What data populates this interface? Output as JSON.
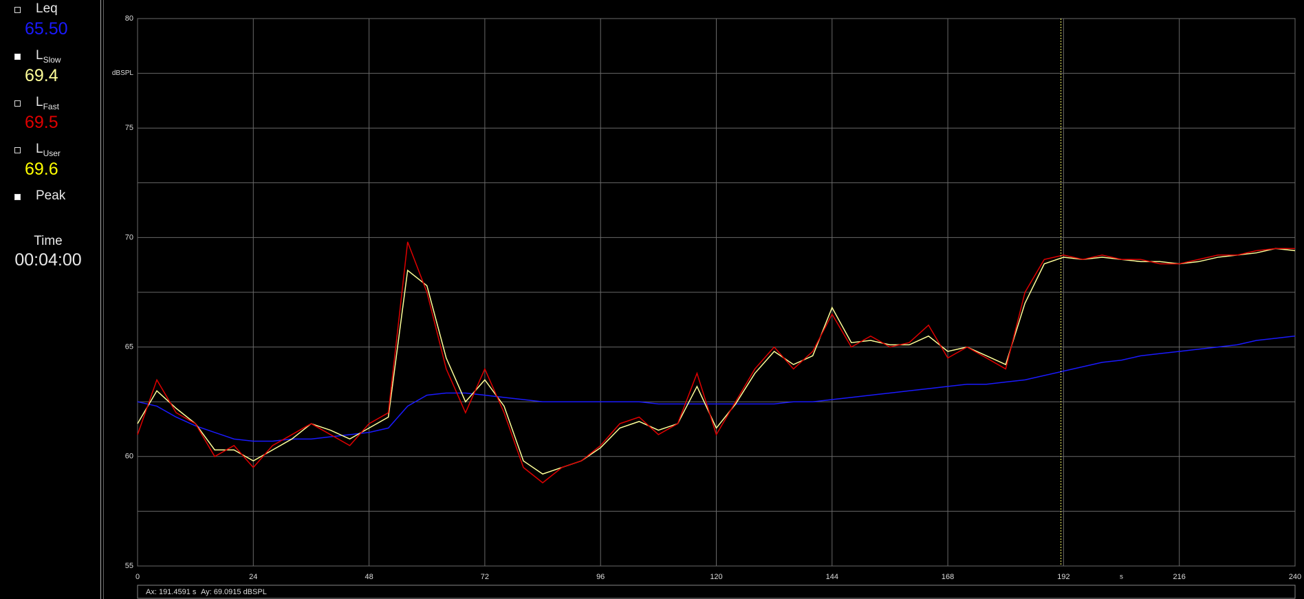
{
  "chart_data": {
    "type": "line",
    "xlabel": "s",
    "ylabel": "dBSPL",
    "x": [
      0,
      4,
      8,
      12,
      16,
      20,
      24,
      28,
      32,
      36,
      40,
      44,
      48,
      52,
      56,
      60,
      64,
      68,
      72,
      76,
      80,
      84,
      88,
      92,
      96,
      100,
      104,
      108,
      112,
      116,
      120,
      124,
      128,
      132,
      136,
      140,
      144,
      148,
      152,
      156,
      160,
      164,
      168,
      172,
      176,
      180,
      184,
      188,
      192,
      196,
      200,
      204,
      208,
      212,
      216,
      220,
      224,
      228,
      232,
      236,
      240
    ],
    "xlim": [
      0,
      240
    ],
    "xticks": [
      0,
      24,
      48,
      72,
      96,
      120,
      144,
      168,
      192,
      216,
      240
    ],
    "ylim": [
      55,
      80
    ],
    "yticks": [
      55,
      60,
      65,
      70,
      75,
      80
    ],
    "minor_yticks": [
      57.5,
      62.5,
      67.5,
      72.5,
      77.5
    ],
    "grid": true,
    "series": [
      {
        "name": "Leq",
        "color": "#1a1aff",
        "checked": false,
        "reading": 65.5,
        "reading_label": "65.50",
        "values": [
          62.5,
          62.3,
          61.8,
          61.4,
          61.1,
          60.8,
          60.7,
          60.7,
          60.8,
          60.8,
          60.9,
          61,
          61.1,
          61.3,
          62.3,
          62.8,
          62.9,
          62.9,
          62.8,
          62.7,
          62.6,
          62.5,
          62.5,
          62.5,
          62.5,
          62.5,
          62.5,
          62.4,
          62.4,
          62.4,
          62.4,
          62.4,
          62.4,
          62.4,
          62.5,
          62.5,
          62.6,
          62.7,
          62.8,
          62.9,
          63,
          63.1,
          63.2,
          63.3,
          63.3,
          63.4,
          63.5,
          63.7,
          63.9,
          64.1,
          64.3,
          64.4,
          64.6,
          64.7,
          64.8,
          64.9,
          65,
          65.1,
          65.3,
          65.4,
          65.5
        ]
      },
      {
        "name": "L",
        "sub": "Slow",
        "color": "#ffff99",
        "checked": true,
        "reading": 69.4,
        "values": [
          61.5,
          63,
          62.2,
          61.5,
          60.3,
          60.3,
          59.8,
          60.3,
          60.8,
          61.5,
          61.2,
          60.8,
          61.3,
          61.8,
          68.5,
          67.8,
          64.5,
          62.5,
          63.5,
          62.3,
          59.8,
          59.2,
          59.5,
          59.8,
          60.4,
          61.3,
          61.6,
          61.2,
          61.5,
          63.2,
          61.3,
          62.4,
          63.8,
          64.8,
          64.2,
          64.6,
          66.8,
          65.2,
          65.3,
          65.1,
          65.1,
          65.5,
          64.8,
          65,
          64.6,
          64.2,
          67,
          68.8,
          69.1,
          69,
          69.1,
          69,
          68.9,
          68.9,
          68.8,
          68.9,
          69.1,
          69.2,
          69.3,
          69.5,
          69.4
        ]
      },
      {
        "name": "L",
        "sub": "Fast",
        "color": "#e00000",
        "checked": false,
        "reading": 69.5,
        "values": [
          61,
          63.5,
          62,
          61.5,
          60,
          60.5,
          59.5,
          60.5,
          61,
          61.5,
          61,
          60.5,
          61.5,
          62,
          69.8,
          67.5,
          64,
          62,
          64,
          62,
          59.5,
          58.8,
          59.5,
          59.8,
          60.5,
          61.5,
          61.8,
          61,
          61.5,
          63.8,
          61,
          62.5,
          64,
          65,
          64,
          64.8,
          66.5,
          65,
          65.5,
          65,
          65.2,
          66,
          64.5,
          65,
          64.5,
          64,
          67.5,
          69,
          69.2,
          69,
          69.2,
          69,
          69,
          68.8,
          68.8,
          69,
          69.2,
          69.2,
          69.4,
          69.5,
          69.5
        ]
      }
    ],
    "meter_extra": [
      {
        "name": "L",
        "sub": "User",
        "color": "#ffff00",
        "checked": false,
        "reading": 69.6
      },
      {
        "name": "Peak",
        "checked": true
      }
    ],
    "cursor_x": 191.4591,
    "cursor_color": "#ffff66",
    "status_x": "Ax: 191.4591 s",
    "status_y": "Ay: 69.0915 dBSPL",
    "clock_label": "Time",
    "clock_value": "00:04:00"
  }
}
